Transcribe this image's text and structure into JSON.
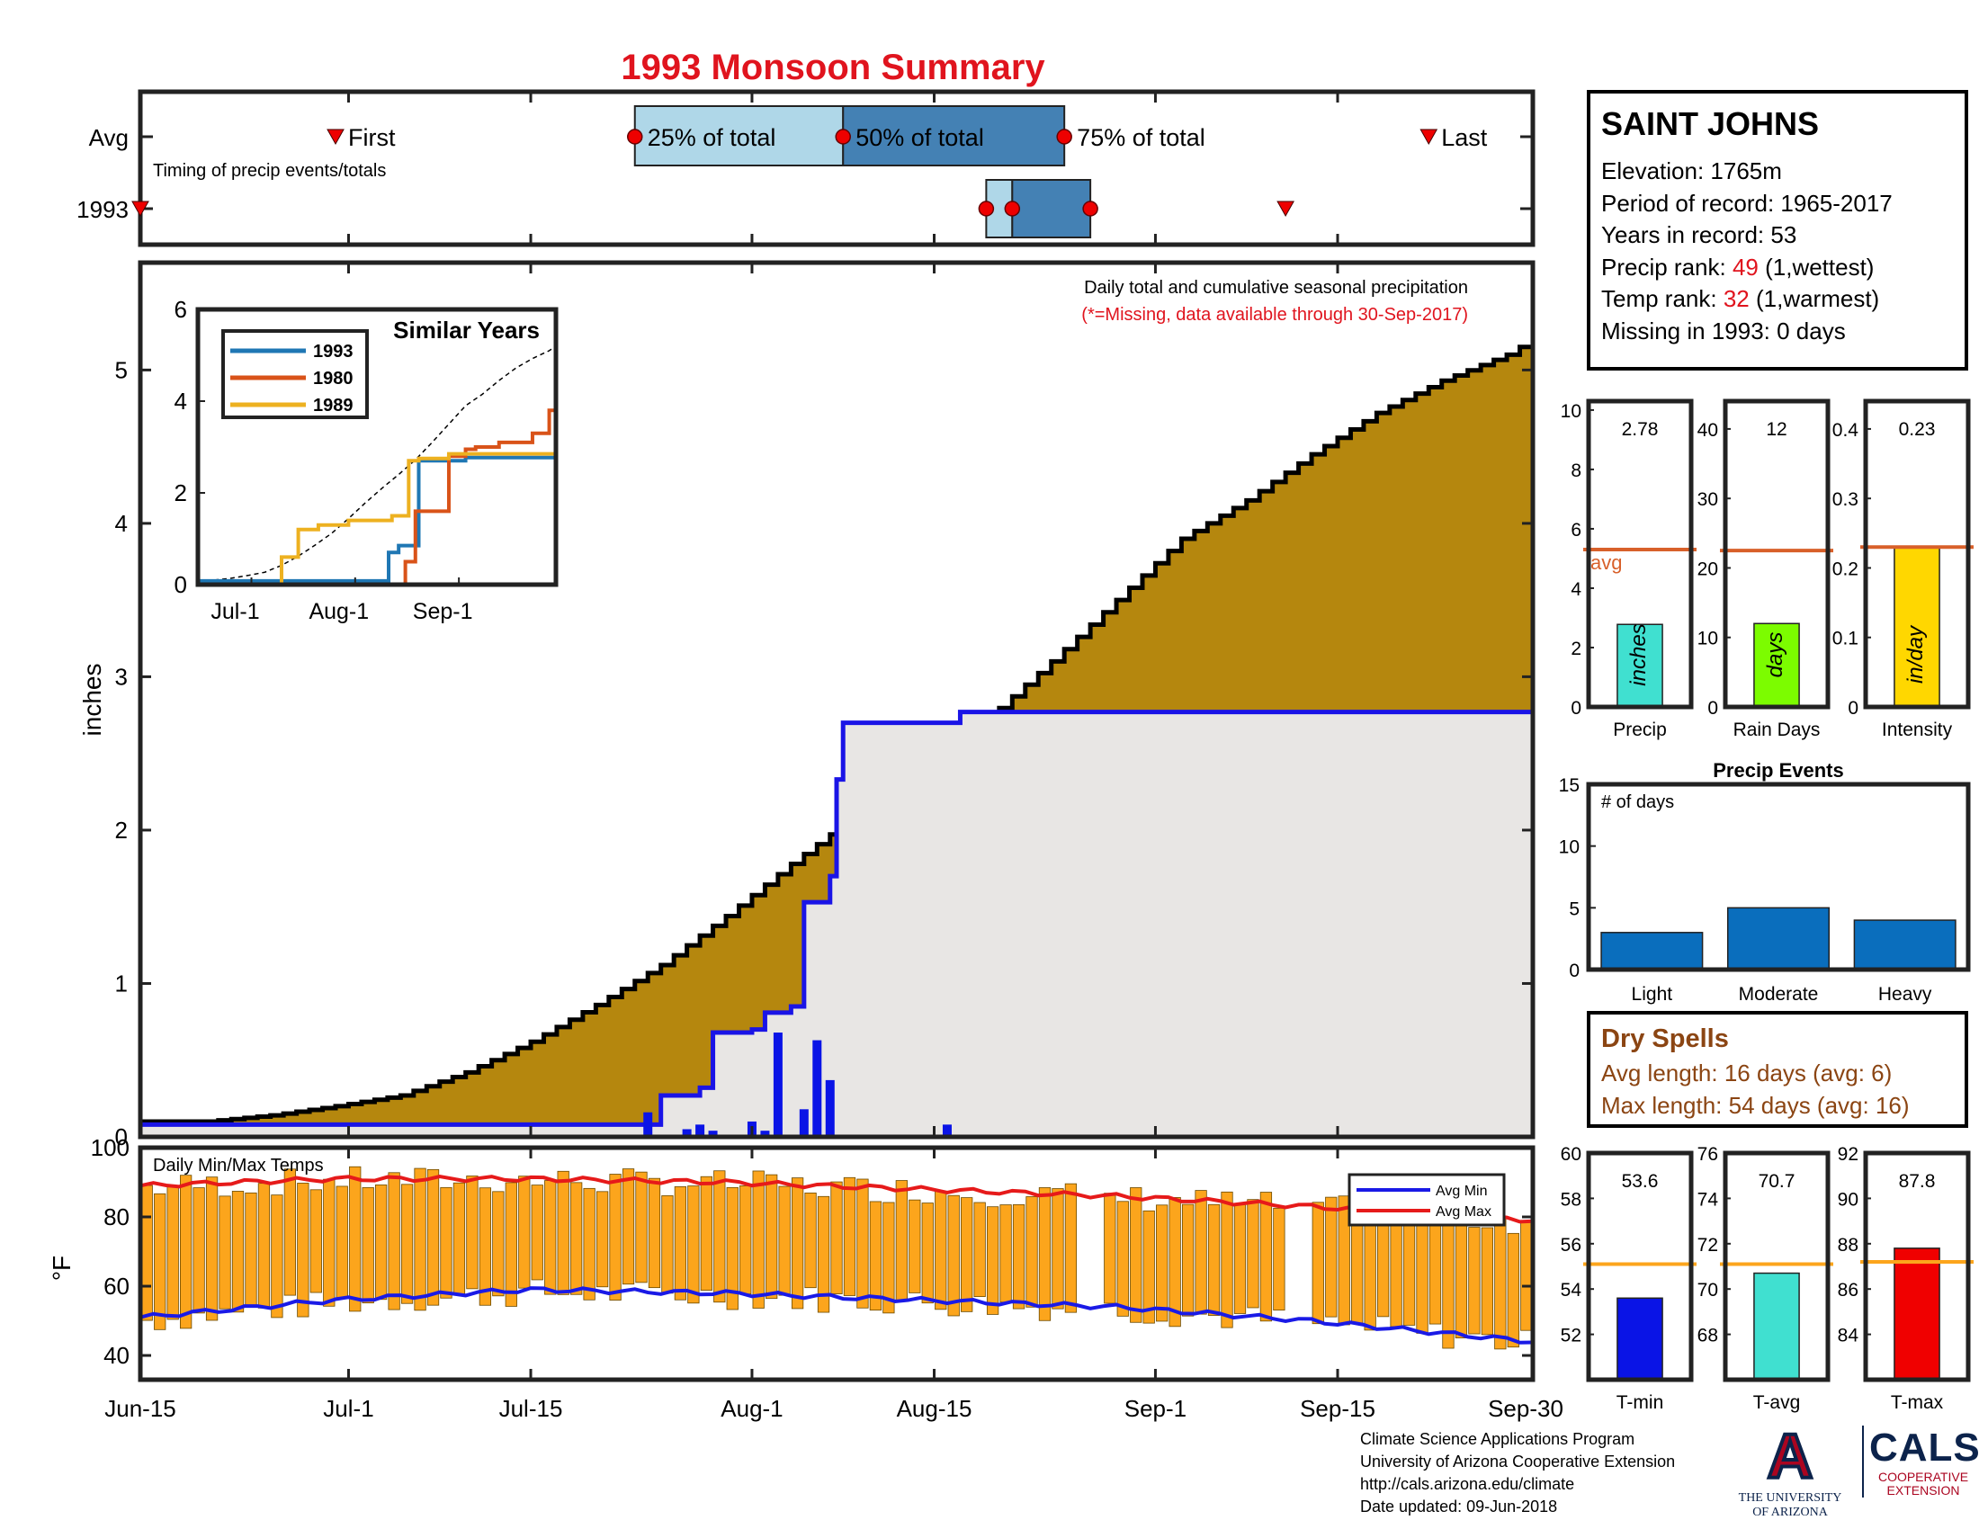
{
  "title": "1993 Monsoon Summary",
  "colors": {
    "title": "#e0141e",
    "cumulative_fill": "#b5870e",
    "year_fill": "#e8e6e4",
    "year_line": "#1a14e6",
    "daily_bar": "#0a14e6",
    "avg_line": "#d8602a",
    "temp_bar": "#fca51c",
    "avg_min": "#1a1ae6",
    "avg_max": "#e61a1a",
    "box_light": "#afd7e8",
    "box_dark": "#4481b4"
  },
  "timing": {
    "caption": "Timing of precip events/totals",
    "row_avg": "Avg",
    "row_year": "1993",
    "first_label": "First",
    "last_label": "Last",
    "p25_label": "25% of total",
    "p50_label": "50% of total",
    "p75_label": "75% of total",
    "avg": {
      "first": "Jun-30",
      "p25": "Jul-23",
      "p50": "Aug-8",
      "p75": "Aug-25",
      "last": "Sep-22"
    },
    "year": {
      "first": "Jun-15",
      "p25": "Aug-19",
      "p50": "Aug-21",
      "p75": "Aug-27",
      "last": "Sep-11"
    }
  },
  "station": {
    "name": "SAINT JOHNS",
    "elevation": "Elevation: 1765m",
    "period": "Period of record: 1965-2017",
    "years": "Years in record: 53",
    "precip_rank_prefix": "Precip rank: ",
    "precip_rank_value": "49",
    "precip_rank_suffix": " (1,wettest)",
    "temp_rank_prefix": "Temp rank: ",
    "temp_rank_value": "32",
    "temp_rank_suffix": " (1,warmest)",
    "missing": "Missing in 1993: 0 days"
  },
  "main_chart": {
    "annotation": "Daily total and cumulative seasonal precipitation",
    "missing_note": "(*=Missing, data available through 30-Sep-2017)",
    "ylabel": "inches",
    "ylim": [
      0,
      5.7
    ],
    "yticks": [
      0,
      1,
      2,
      3,
      4,
      5
    ],
    "xticks": [
      "Jun-15",
      "Jul-1",
      "Jul-15",
      "Aug-1",
      "Aug-15",
      "Sep-1",
      "Sep-15",
      "Sep-30"
    ],
    "xtick_days": [
      0,
      16,
      30,
      47,
      61,
      78,
      92,
      107
    ]
  },
  "similar_years": {
    "title": "Similar Years",
    "ylim": [
      0,
      6
    ],
    "yticks": [
      0,
      2,
      4,
      6
    ],
    "xticks": [
      "Jul-1",
      "Aug-1",
      "Sep-1"
    ],
    "series": [
      {
        "name": "1993",
        "color": "#1f77b4"
      },
      {
        "name": "1980",
        "color": "#d95319"
      },
      {
        "name": "1989",
        "color": "#edb120"
      }
    ]
  },
  "temp_chart": {
    "label": "Daily Min/Max Temps",
    "ylabel": "°F",
    "ylim": [
      33,
      100
    ],
    "yticks": [
      40,
      60,
      80,
      100
    ],
    "legend": [
      "Avg Min",
      "Avg Max"
    ]
  },
  "mini_precip": {
    "labels": [
      "Precip",
      "Rain Days",
      "Intensity"
    ],
    "values_text": [
      "2.78",
      "12",
      "0.23"
    ],
    "units": [
      "inches",
      "days",
      "in/day"
    ],
    "avg_label": "avg",
    "bar_colors": [
      "#40e0d0",
      "#7cfc00",
      "#ffd700"
    ],
    "values": [
      2.78,
      12,
      0.23
    ],
    "avgs": [
      5.3,
      22.5,
      0.23
    ],
    "ylims": [
      [
        0,
        10.3
      ],
      [
        0,
        44
      ],
      [
        0,
        0.44
      ]
    ],
    "yticks": [
      [
        0,
        2,
        4,
        6,
        8,
        10
      ],
      [
        0,
        10,
        20,
        30,
        40
      ],
      [
        0,
        0.1,
        0.2,
        0.3,
        0.4
      ]
    ]
  },
  "precip_events": {
    "title": "Precip Events",
    "ylabel": "# of days",
    "categories": [
      "Light",
      "Moderate",
      "Heavy"
    ],
    "values": [
      3,
      5,
      4
    ],
    "ylim": [
      0,
      15
    ],
    "yticks": [
      0,
      5,
      10,
      15
    ]
  },
  "dry_spells": {
    "title": "Dry Spells",
    "avg_line": "Avg length: 16 days (avg: 6)",
    "max_line": "Max length: 54 days (avg: 16)"
  },
  "mini_temp": {
    "labels": [
      "T-min",
      "T-avg",
      "T-max"
    ],
    "values_text": [
      "53.6",
      "70.7",
      "87.8"
    ],
    "bar_colors": [
      "#0a14e6",
      "#40e0d0",
      "#f00000"
    ],
    "values": [
      53.6,
      70.7,
      87.8
    ],
    "avgs": [
      55.1,
      71.1,
      87.2
    ],
    "ylims": [
      [
        50,
        60
      ],
      [
        66,
        76
      ],
      [
        82,
        92
      ]
    ],
    "yticks": [
      [
        52,
        54,
        56,
        58,
        60
      ],
      [
        68,
        70,
        72,
        74,
        76
      ],
      [
        84,
        86,
        88,
        90,
        92
      ]
    ]
  },
  "footer": {
    "line1": "Climate Science Applications Program",
    "line2": "University of Arizona Cooperative Extension",
    "line3": "http://cals.arizona.edu/climate",
    "line4": "Date updated: 09-Jun-2018"
  },
  "logos": {
    "ua_letter": "A",
    "ua_text1": "THE UNIVERSITY",
    "ua_text2": "OF ARIZONA",
    "cals_text": "CALS",
    "cals_sub1": "COOPERATIVE",
    "cals_sub2": "EXTENSION"
  },
  "chart_data": [
    {
      "type": "area",
      "title": "1993 Monsoon Summary",
      "ylabel": "inches",
      "ylim": [
        0,
        5.7
      ],
      "x_start": "Jun-15",
      "x_end": "Sep-30",
      "series": [
        {
          "name": "cumulative avg",
          "x": [
            0,
            5,
            10,
            15,
            20,
            25,
            30,
            35,
            40,
            45,
            50,
            55,
            60,
            65,
            70,
            75,
            80,
            85,
            90,
            95,
            100,
            105,
            107
          ],
          "values": [
            0.1,
            0.1,
            0.14,
            0.2,
            0.27,
            0.42,
            0.62,
            0.86,
            1.12,
            1.44,
            1.78,
            2.1,
            2.4,
            2.72,
            3.1,
            3.5,
            3.9,
            4.15,
            4.45,
            4.72,
            4.93,
            5.1,
            5.2
          ]
        },
        {
          "name": "1993 cumulative",
          "x": [
            0,
            39,
            40,
            43,
            44,
            47,
            48,
            50,
            51,
            52,
            53,
            53.5,
            54,
            62,
            63,
            106,
            107
          ],
          "values": [
            0.08,
            0.08,
            0.27,
            0.32,
            0.68,
            0.7,
            0.81,
            0.85,
            1.53,
            1.53,
            1.7,
            2.33,
            2.7,
            2.7,
            2.77,
            2.77,
            2.78
          ]
        },
        {
          "name": "1993 daily",
          "x": [
            0,
            39,
            42,
            43,
            44,
            47,
            48,
            49,
            51,
            52,
            53,
            62
          ],
          "values": [
            0.05,
            0.16,
            0.05,
            0.08,
            0.04,
            0.1,
            0.04,
            0.68,
            0.18,
            0.63,
            0.37,
            0.08
          ]
        }
      ]
    },
    {
      "type": "line",
      "title": "Similar Years",
      "xticks": [
        "Jul-1",
        "Aug-1",
        "Sep-1"
      ],
      "ylim": [
        0,
        6
      ],
      "series": [
        {
          "name": "1993",
          "x": [
            0,
            55,
            57,
            60,
            66,
            80,
            107
          ],
          "values": [
            0.08,
            0.08,
            0.7,
            0.85,
            2.7,
            2.77,
            2.78
          ]
        },
        {
          "name": "1980",
          "x": [
            0,
            20,
            60,
            62,
            65,
            73,
            75,
            80,
            83,
            90,
            100,
            105,
            107
          ],
          "values": [
            0,
            0,
            0,
            0.5,
            1.6,
            1.6,
            2.8,
            2.95,
            3.0,
            3.1,
            3.3,
            3.8,
            3.8
          ]
        },
        {
          "name": "1989",
          "x": [
            0,
            22,
            25,
            30,
            36,
            45,
            58,
            63,
            66,
            75,
            107
          ],
          "values": [
            0,
            0,
            0.6,
            1.2,
            1.3,
            1.4,
            1.5,
            2.7,
            2.75,
            2.85,
            2.95
          ]
        }
      ]
    },
    {
      "type": "bar",
      "title": "Daily Min/Max Temps",
      "ylabel": "°F",
      "ylim": [
        33,
        100
      ],
      "series": [
        {
          "name": "Avg Min",
          "x": [
            0,
            15,
            30,
            45,
            60,
            75,
            90,
            107
          ],
          "values": [
            51,
            56,
            59,
            58,
            56,
            54,
            50,
            44
          ]
        },
        {
          "name": "Avg Max",
          "x": [
            0,
            15,
            30,
            45,
            60,
            75,
            90,
            107
          ],
          "values": [
            89,
            91,
            91,
            90,
            88,
            86,
            83,
            79
          ]
        }
      ]
    },
    {
      "type": "bar",
      "title": "Precip",
      "categories": [
        "Precip",
        "Rain Days",
        "Intensity"
      ],
      "values": [
        2.78,
        12,
        0.23
      ]
    },
    {
      "type": "bar",
      "title": "Precip Events",
      "categories": [
        "Light",
        "Moderate",
        "Heavy"
      ],
      "values": [
        3,
        5,
        4
      ],
      "ylim": [
        0,
        15
      ]
    },
    {
      "type": "bar",
      "categories": [
        "T-min",
        "T-avg",
        "T-max"
      ],
      "values": [
        53.6,
        70.7,
        87.8
      ]
    }
  ]
}
